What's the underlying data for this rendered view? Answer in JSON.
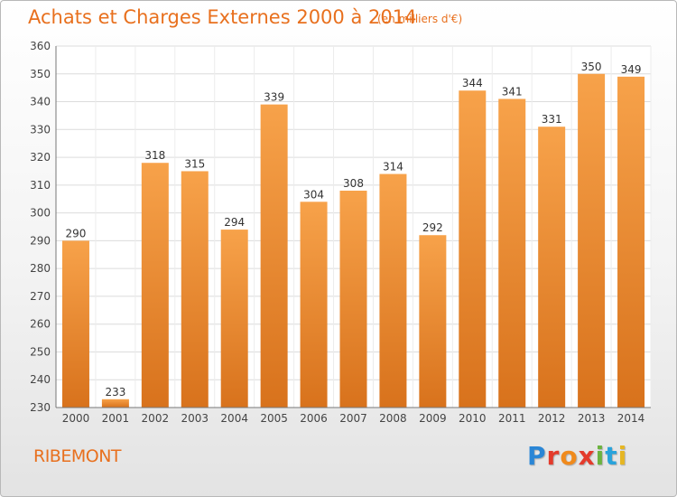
{
  "chart_data": {
    "type": "bar",
    "title": "Achats et Charges Externes 2000 à 2014",
    "subtitle": "(en milliers d'€)",
    "categories": [
      "2000",
      "2001",
      "2002",
      "2003",
      "2004",
      "2005",
      "2006",
      "2007",
      "2008",
      "2009",
      "2010",
      "2011",
      "2012",
      "2013",
      "2014"
    ],
    "values": [
      290,
      233,
      318,
      315,
      294,
      339,
      304,
      308,
      314,
      292,
      344,
      341,
      331,
      350,
      349
    ],
    "ylim": [
      230,
      360
    ],
    "yticks": [
      230,
      240,
      250,
      260,
      270,
      280,
      290,
      300,
      310,
      320,
      330,
      340,
      350,
      360
    ],
    "xlabel": "",
    "ylabel": "",
    "grid": true,
    "bar_color": "#f0882a"
  },
  "footer": {
    "commune": "RIBEMONT",
    "logo_letters": [
      "P",
      "r",
      "o",
      "x",
      "i",
      "t",
      "i"
    ]
  }
}
